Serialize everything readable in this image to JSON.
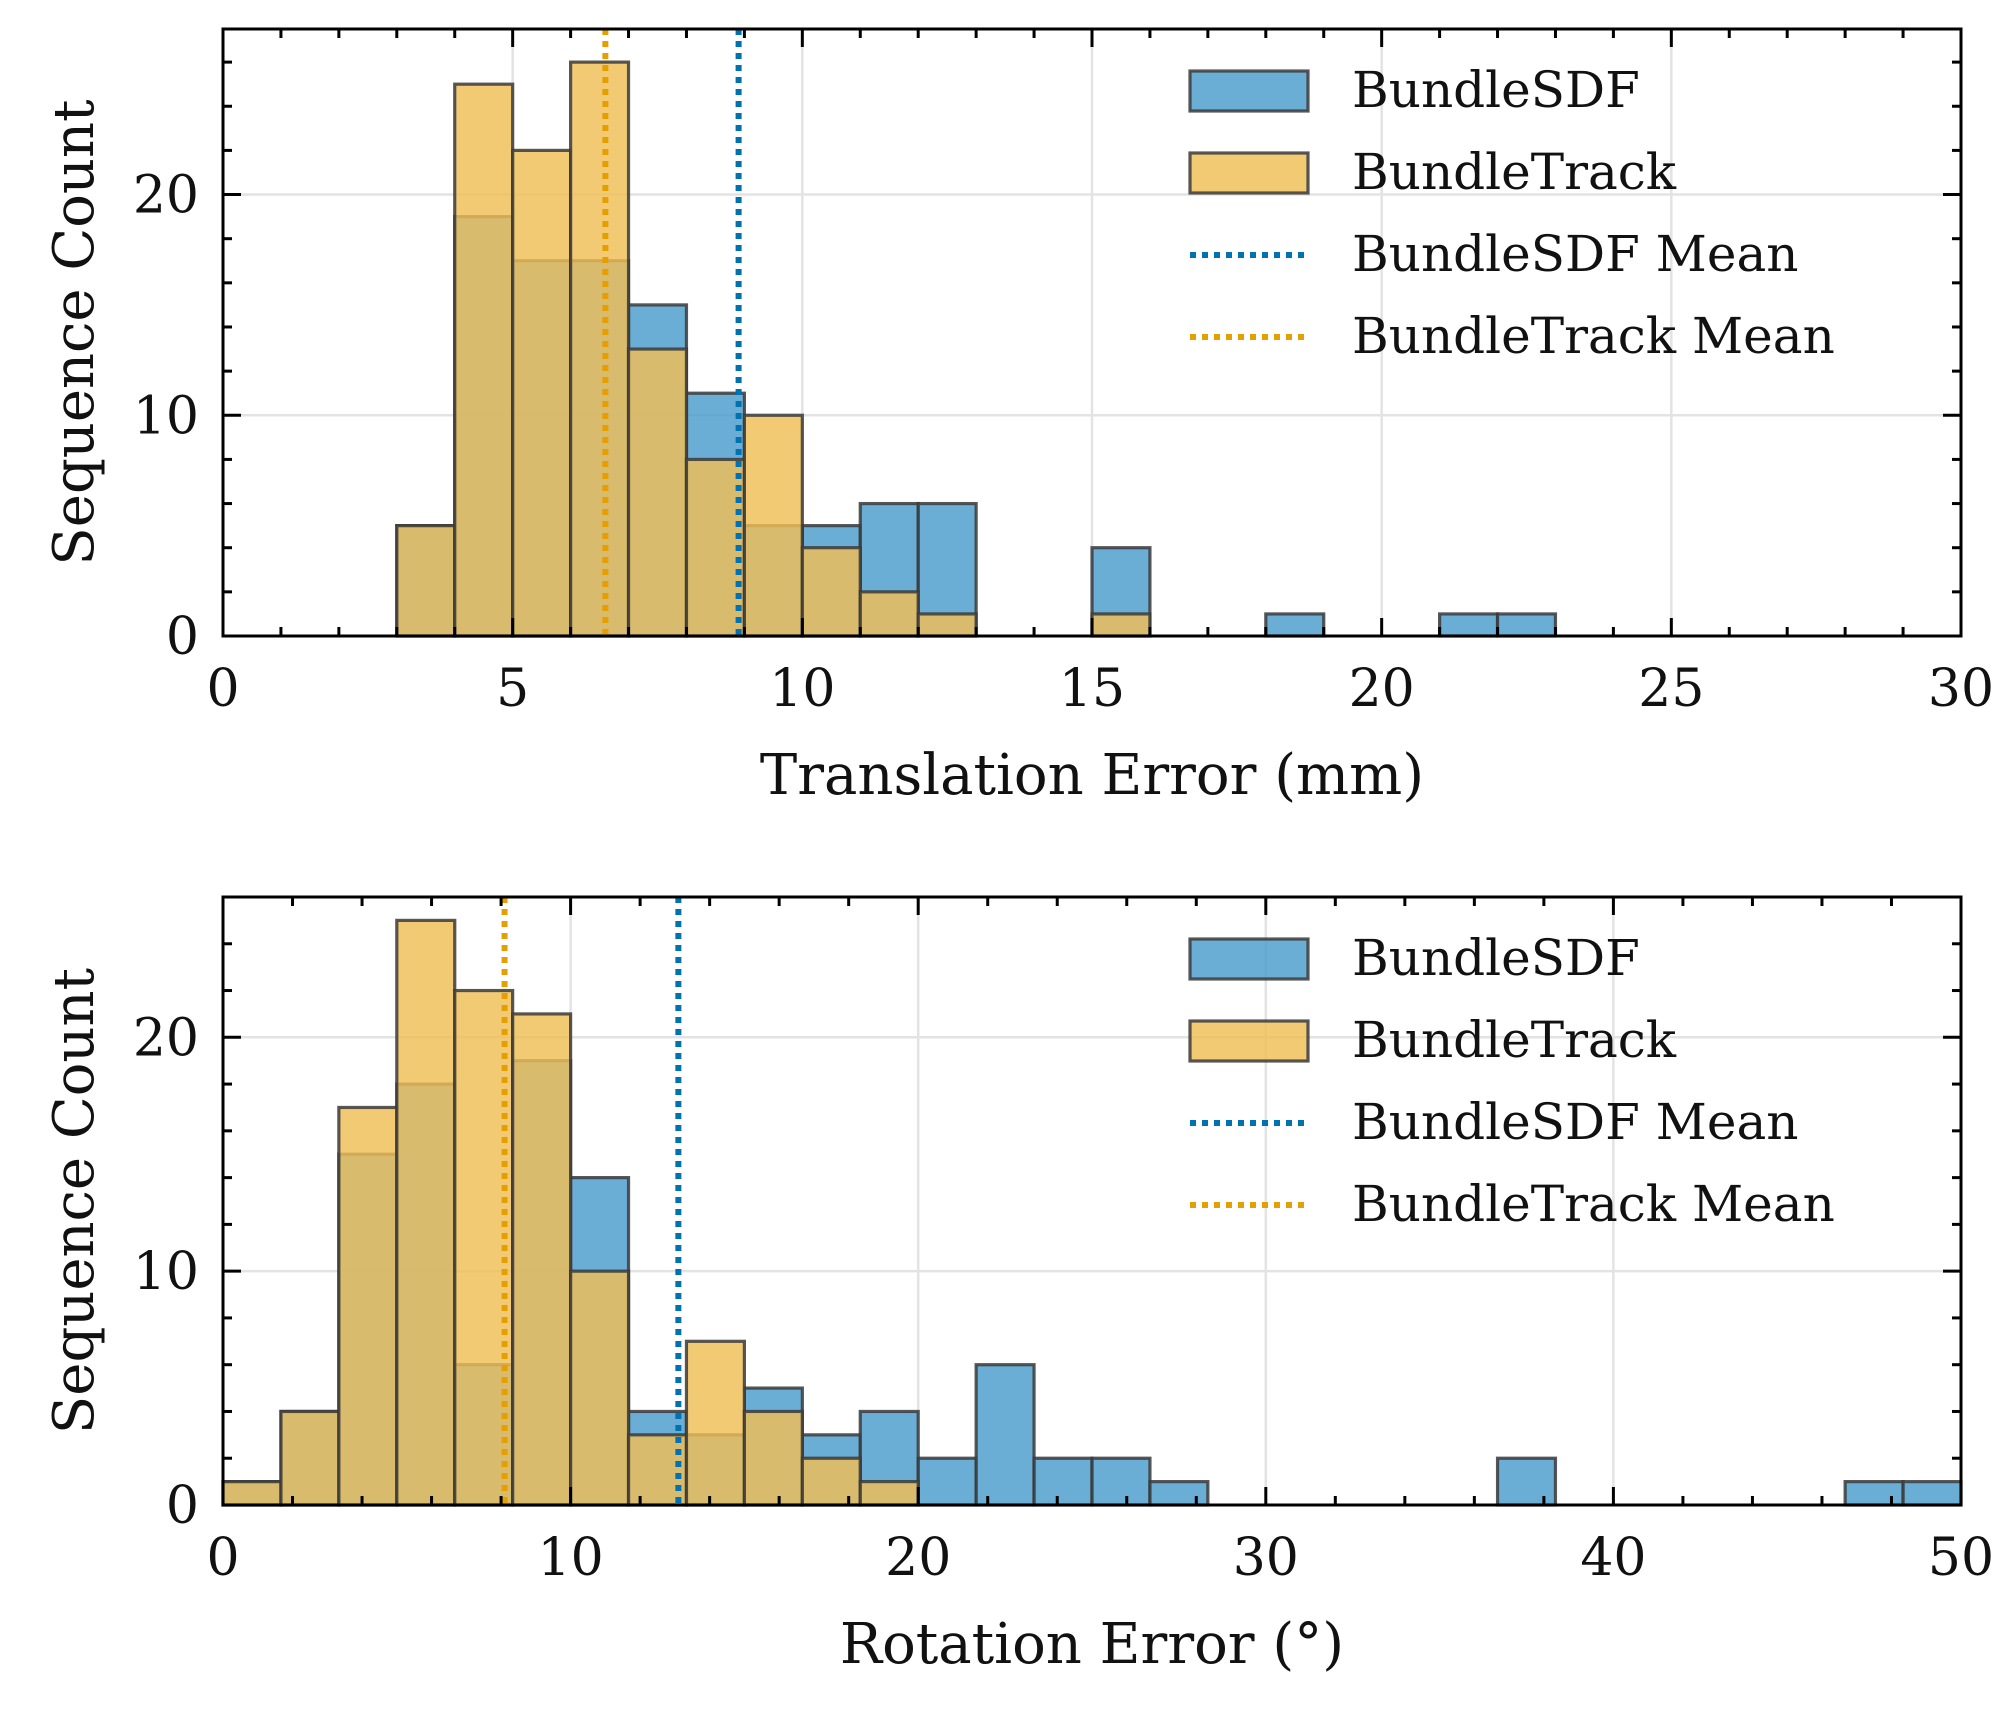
{
  "chart_data": [
    {
      "type": "histogram",
      "xlabel": "Translation Error (mm)",
      "ylabel": "Sequence Count",
      "xlim": [
        0,
        30
      ],
      "ylim": [
        0,
        27.5
      ],
      "xticks": [
        0,
        5,
        10,
        15,
        20,
        25,
        30
      ],
      "xtick_labels": [
        "0",
        "5",
        "10",
        "15",
        "20",
        "25",
        "30"
      ],
      "yticks": [
        0,
        10,
        20
      ],
      "ytick_labels": [
        "0",
        "10",
        "20"
      ],
      "x_minor_step": 1,
      "y_minor_step": 2,
      "grid": true,
      "legend_position": "top-right",
      "bin_edges": [
        0,
        1,
        2,
        3,
        4,
        5,
        6,
        7,
        8,
        9,
        10,
        11,
        12,
        13,
        14,
        15,
        16,
        17,
        18,
        19,
        20,
        21,
        22,
        23,
        24,
        25,
        26,
        27,
        28,
        29,
        30
      ],
      "series": [
        {
          "name": "BundleSDF",
          "color": "#4a9ccc",
          "values": [
            0,
            0,
            0,
            5,
            19,
            17,
            17,
            15,
            11,
            5,
            5,
            6,
            6,
            0,
            0,
            4,
            0,
            0,
            1,
            0,
            0,
            1,
            1,
            0,
            0,
            0,
            0,
            0,
            0,
            0
          ]
        },
        {
          "name": "BundleTrack",
          "color": "#f0be55",
          "values": [
            0,
            0,
            0,
            5,
            25,
            22,
            26,
            13,
            8,
            10,
            4,
            2,
            1,
            0,
            0,
            1,
            0,
            0,
            0,
            0,
            0,
            0,
            0,
            0,
            0,
            0,
            0,
            0,
            0,
            0
          ]
        }
      ],
      "means": [
        {
          "name": "BundleSDF Mean",
          "value": 8.9,
          "color": "#0072b2"
        },
        {
          "name": "BundleTrack Mean",
          "value": 6.6,
          "color": "#e69f00"
        }
      ]
    },
    {
      "type": "histogram",
      "xlabel": "Rotation Error (°)",
      "ylabel": "Sequence Count",
      "xlim": [
        0,
        50
      ],
      "ylim": [
        0,
        26
      ],
      "xticks": [
        0,
        10,
        20,
        30,
        40,
        50
      ],
      "xtick_labels": [
        "0",
        "10",
        "20",
        "30",
        "40",
        "50"
      ],
      "yticks": [
        0,
        10,
        20
      ],
      "ytick_labels": [
        "0",
        "10",
        "20"
      ],
      "x_minor_step": 2,
      "y_minor_step": 2,
      "grid": true,
      "legend_position": "top-right",
      "bin_edges": [
        0,
        1.667,
        3.333,
        5,
        6.667,
        8.333,
        10,
        11.667,
        13.333,
        15,
        16.667,
        18.333,
        20,
        21.667,
        23.333,
        25,
        26.667,
        28.333,
        30,
        31.667,
        33.333,
        35,
        36.667,
        38.333,
        40,
        41.667,
        43.333,
        45,
        46.667,
        48.333,
        50
      ],
      "series": [
        {
          "name": "BundleSDF",
          "color": "#4a9ccc",
          "values": [
            1,
            4,
            15,
            18,
            6,
            19,
            14,
            4,
            3,
            5,
            3,
            4,
            2,
            6,
            2,
            2,
            1,
            0,
            0,
            0,
            0,
            0,
            2,
            0,
            0,
            0,
            0,
            0,
            1,
            1
          ]
        },
        {
          "name": "BundleTrack",
          "color": "#f0be55",
          "values": [
            1,
            4,
            17,
            25,
            22,
            21,
            10,
            3,
            7,
            4,
            2,
            1,
            0,
            0,
            0,
            0,
            0,
            0,
            0,
            0,
            0,
            0,
            0,
            0,
            0,
            0,
            0,
            0,
            0,
            0
          ]
        }
      ],
      "means": [
        {
          "name": "BundleSDF Mean",
          "value": 13.1,
          "color": "#0072b2"
        },
        {
          "name": "BundleTrack Mean",
          "value": 8.1,
          "color": "#e69f00"
        }
      ]
    }
  ]
}
